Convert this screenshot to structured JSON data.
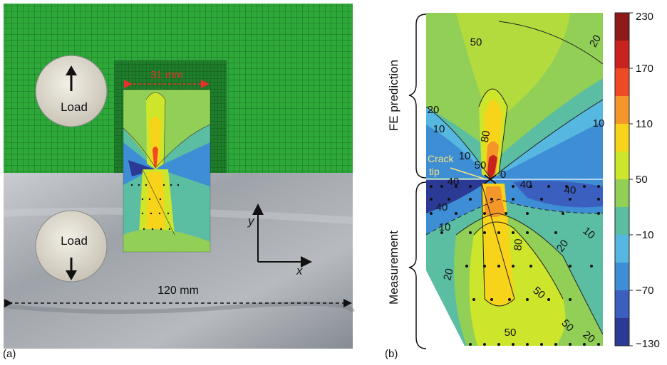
{
  "panel_a": {
    "label": "(a)",
    "load_top": "Load",
    "load_bottom": "Load",
    "width_dim": "31 mm",
    "length_dim": "120 mm",
    "axis_y": "y",
    "axis_x": "x"
  },
  "panel_b": {
    "label": "(b)",
    "region_top": "FE prediction",
    "region_bottom": "Measurement",
    "crack_tip": [
      "Crack",
      "tip"
    ],
    "contours": {
      "c50_top": "50",
      "c20_tr": "20",
      "c20_l": "20",
      "c10_l": "10",
      "c10_r": "10",
      "c80": "80",
      "c10_c": "10",
      "c50_c": "50",
      "c0": "0",
      "c40_l1": "40",
      "c40_r1": "40",
      "c40_r2": "40",
      "c40_l2": "40",
      "c10_bl": "10",
      "c10_br": "10",
      "c80_b": "80",
      "c20_b": "20",
      "c20_bl": "20",
      "c50_b1": "50",
      "c50_b2": "50",
      "c50_b3": "50",
      "c20_br": "20"
    }
  },
  "colorbar": {
    "ticks": [
      "230",
      "170",
      "110",
      "50",
      "−10",
      "−70",
      "−130"
    ],
    "colors": [
      "#8e1a1a",
      "#c8231f",
      "#ee4a24",
      "#f4962a",
      "#f7d31a",
      "#cde52a",
      "#92cf57",
      "#5bbda2",
      "#56b8e0",
      "#3e8ed6",
      "#3a5fbf",
      "#2b3a94"
    ]
  }
}
